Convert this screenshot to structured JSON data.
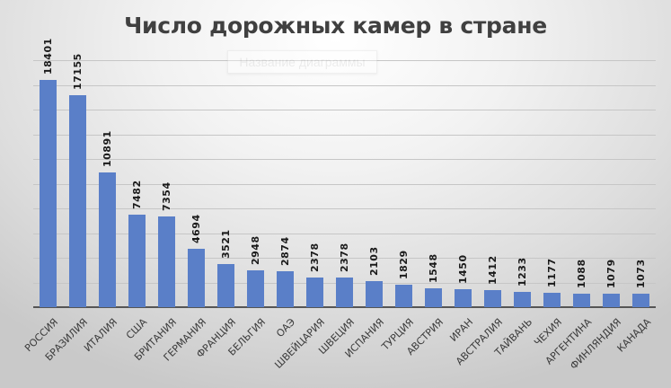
{
  "chart_data": {
    "type": "bar",
    "title": "Число дорожных камер в стране",
    "placeholder_title": "Название диаграммы",
    "xlabel": "",
    "ylabel": "",
    "ylim": [
      0,
      20000
    ],
    "grid": true,
    "gridline_step": 2000,
    "y_tick_labels_visible": false,
    "data_labels": true,
    "bar_color": "#5a7fc8",
    "categories": [
      "РОССИЯ",
      "БРАЗИЛИЯ",
      "ИТАЛИЯ",
      "США",
      "БРИТАНИЯ",
      "ГЕРМАНИЯ",
      "ФРАНЦИЯ",
      "БЕЛЬГИЯ",
      "ОАЭ",
      "ШВЕЙЦАРИЯ",
      "ШВЕЦИЯ",
      "ИСПАНИЯ",
      "ТУРЦИЯ",
      "АВСТРИЯ",
      "ИРАН",
      "АВСТРАЛИЯ",
      "ТАЙВАНЬ",
      "ЧЕХИЯ",
      "АРГЕНТИНА",
      "ФИНЛЯНДИЯ",
      "КАНАДА"
    ],
    "values": [
      18401,
      17155,
      10891,
      7482,
      7354,
      4694,
      3521,
      2948,
      2874,
      2378,
      2378,
      2103,
      1829,
      1548,
      1450,
      1412,
      1233,
      1177,
      1088,
      1079,
      1073
    ]
  }
}
